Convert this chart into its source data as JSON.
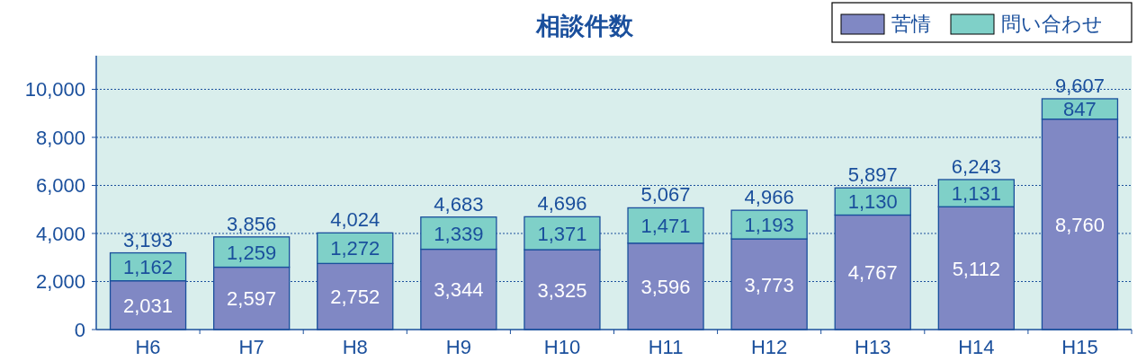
{
  "chart_data": {
    "type": "bar",
    "title": "相談件数",
    "categories": [
      "H6",
      "H7",
      "H8",
      "H9",
      "H10",
      "H11",
      "H12",
      "H13",
      "H14",
      "H15"
    ],
    "stacked": true,
    "series": [
      {
        "name": "苦情",
        "color": "#8088c4",
        "values": [
          2031,
          2597,
          2752,
          3344,
          3325,
          3596,
          3773,
          4767,
          5112,
          8760
        ],
        "value_labels": [
          "2,031",
          "2,597",
          "2,752",
          "3,344",
          "3,325",
          "3,596",
          "3,773",
          "4,767",
          "5,112",
          "8,760"
        ]
      },
      {
        "name": "問い合わせ",
        "color": "#7fd0c8",
        "values": [
          1162,
          1259,
          1272,
          1339,
          1371,
          1471,
          1193,
          1130,
          1131,
          847
        ],
        "value_labels": [
          "1,162",
          "1,259",
          "1,272",
          "1,339",
          "1,371",
          "1,471",
          "1,193",
          "1,130",
          "1,131",
          "847"
        ]
      }
    ],
    "totals": [
      "3,193",
      "3,856",
      "4,024",
      "4,683",
      "4,696",
      "5,067",
      "4,966",
      "5,897",
      "6,243",
      "9,607"
    ],
    "ylim": [
      0,
      11400
    ],
    "yticks": [
      0,
      {
        "value": 2000,
        "label": "2,000"
      },
      {
        "value": 4000,
        "label": "4,000"
      },
      {
        "value": 6000,
        "label": "6,000"
      },
      {
        "value": 8000,
        "label": "8,000"
      },
      {
        "value": 10000,
        "label": "10,000"
      }
    ],
    "grid": "y",
    "legend": "top right"
  }
}
